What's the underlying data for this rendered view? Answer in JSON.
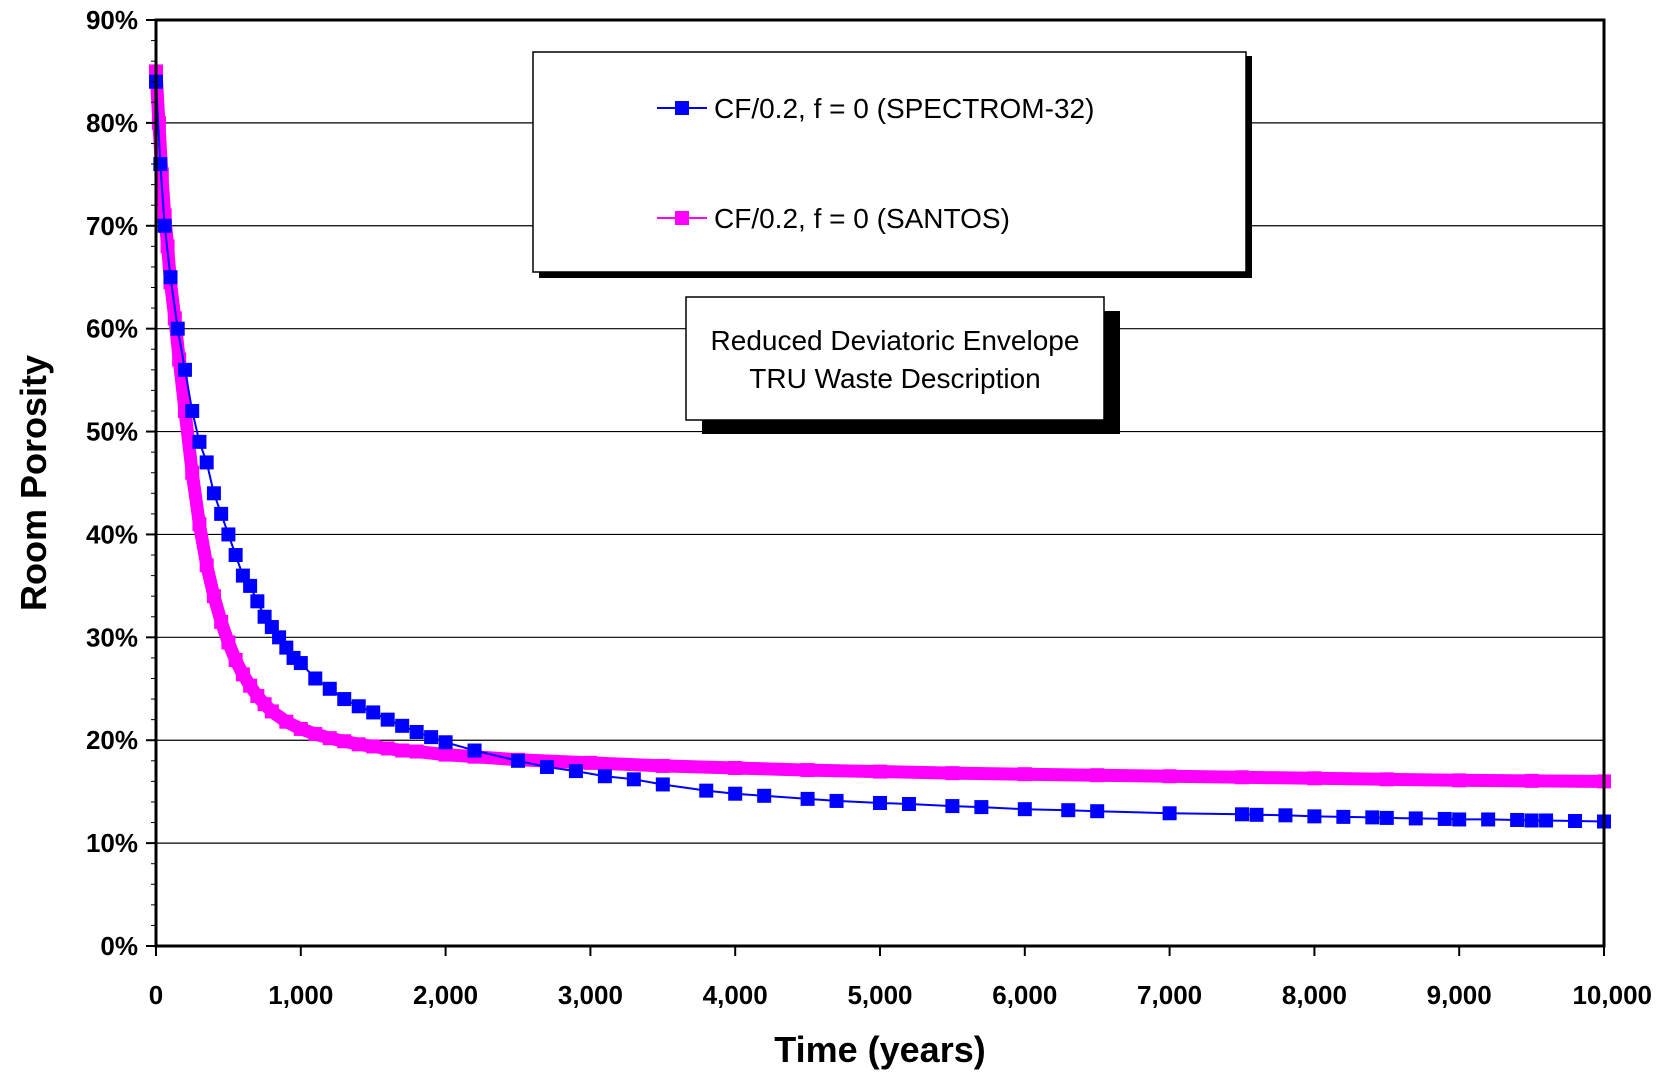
{
  "chart_data": {
    "type": "line",
    "xlabel": "Time (years)",
    "ylabel": "Room Porosity",
    "xlim": [
      0,
      10000
    ],
    "ylim": [
      0,
      90
    ],
    "x_ticks": [
      0,
      1000,
      2000,
      3000,
      4000,
      5000,
      6000,
      7000,
      8000,
      9000,
      10000
    ],
    "x_tick_labels": [
      "0",
      "1,000",
      "2,000",
      "3,000",
      "4,000",
      "5,000",
      "6,000",
      "7,000",
      "8,000",
      "9,000",
      "10,000"
    ],
    "y_ticks": [
      0,
      10,
      20,
      30,
      40,
      50,
      60,
      70,
      80,
      90
    ],
    "y_tick_labels": [
      "0%",
      "10%",
      "20%",
      "30%",
      "40%",
      "50%",
      "60%",
      "70%",
      "80%",
      "90%"
    ],
    "grid": "horizontal",
    "legend_placement": "top-center",
    "annotation": [
      "Reduced Deviatoric Envelope",
      "TRU Waste Description"
    ],
    "series": [
      {
        "name": "CF/0.2, f = 0 (SPECTROM-32)",
        "color": "#0000FF",
        "marker": "square",
        "x": [
          0,
          30,
          60,
          100,
          150,
          200,
          250,
          300,
          350,
          400,
          450,
          500,
          550,
          600,
          650,
          700,
          750,
          800,
          850,
          900,
          950,
          1000,
          1100,
          1200,
          1300,
          1400,
          1500,
          1600,
          1700,
          1800,
          1900,
          2000,
          2200,
          2500,
          2700,
          2900,
          3100,
          3300,
          3500,
          3800,
          4000,
          4200,
          4500,
          4700,
          5000,
          5200,
          5500,
          5700,
          6000,
          6300,
          6500,
          7000,
          7500,
          7600,
          7800,
          8000,
          8200,
          8400,
          8500,
          8700,
          8900,
          9000,
          9200,
          9400,
          9500,
          9600,
          9800,
          10000
        ],
        "values": [
          84,
          76,
          70,
          65,
          60,
          56,
          52,
          49,
          47,
          44,
          42,
          40,
          38,
          36,
          35,
          33.5,
          32,
          31,
          30,
          29,
          28,
          27.5,
          26,
          25,
          24,
          23.3,
          22.7,
          22,
          21.4,
          20.8,
          20.3,
          19.8,
          19,
          18,
          17.4,
          17,
          16.5,
          16.2,
          15.7,
          15.1,
          14.8,
          14.6,
          14.3,
          14.1,
          13.9,
          13.8,
          13.6,
          13.5,
          13.3,
          13.2,
          13.1,
          12.9,
          12.8,
          12.75,
          12.7,
          12.6,
          12.55,
          12.5,
          12.45,
          12.4,
          12.35,
          12.3,
          12.3,
          12.25,
          12.2,
          12.2,
          12.15,
          12.1
        ]
      },
      {
        "name": "CF/0.2, f = 0 (SANTOS)",
        "color": "#FF00FF",
        "marker": "square",
        "x": [
          0,
          20,
          40,
          60,
          80,
          100,
          130,
          160,
          200,
          250,
          300,
          350,
          400,
          450,
          500,
          550,
          600,
          650,
          700,
          750,
          800,
          900,
          1000,
          1100,
          1200,
          1300,
          1400,
          1500,
          1600,
          1700,
          1800,
          2000,
          2200,
          2500,
          3000,
          3500,
          4000,
          4500,
          5000,
          5500,
          6000,
          6500,
          7000,
          7500,
          8000,
          8500,
          9000,
          9500,
          10000
        ],
        "values": [
          85,
          80,
          75,
          71,
          68,
          64.5,
          61,
          57,
          52,
          46,
          41,
          37,
          34,
          31.5,
          29.5,
          27.8,
          26.4,
          25.3,
          24.3,
          23.5,
          22.8,
          21.8,
          21.1,
          20.6,
          20.2,
          19.9,
          19.6,
          19.4,
          19.2,
          19,
          18.9,
          18.6,
          18.4,
          18.1,
          17.8,
          17.5,
          17.3,
          17.1,
          16.95,
          16.8,
          16.7,
          16.6,
          16.5,
          16.4,
          16.3,
          16.2,
          16.1,
          16.05,
          16
        ]
      }
    ]
  }
}
